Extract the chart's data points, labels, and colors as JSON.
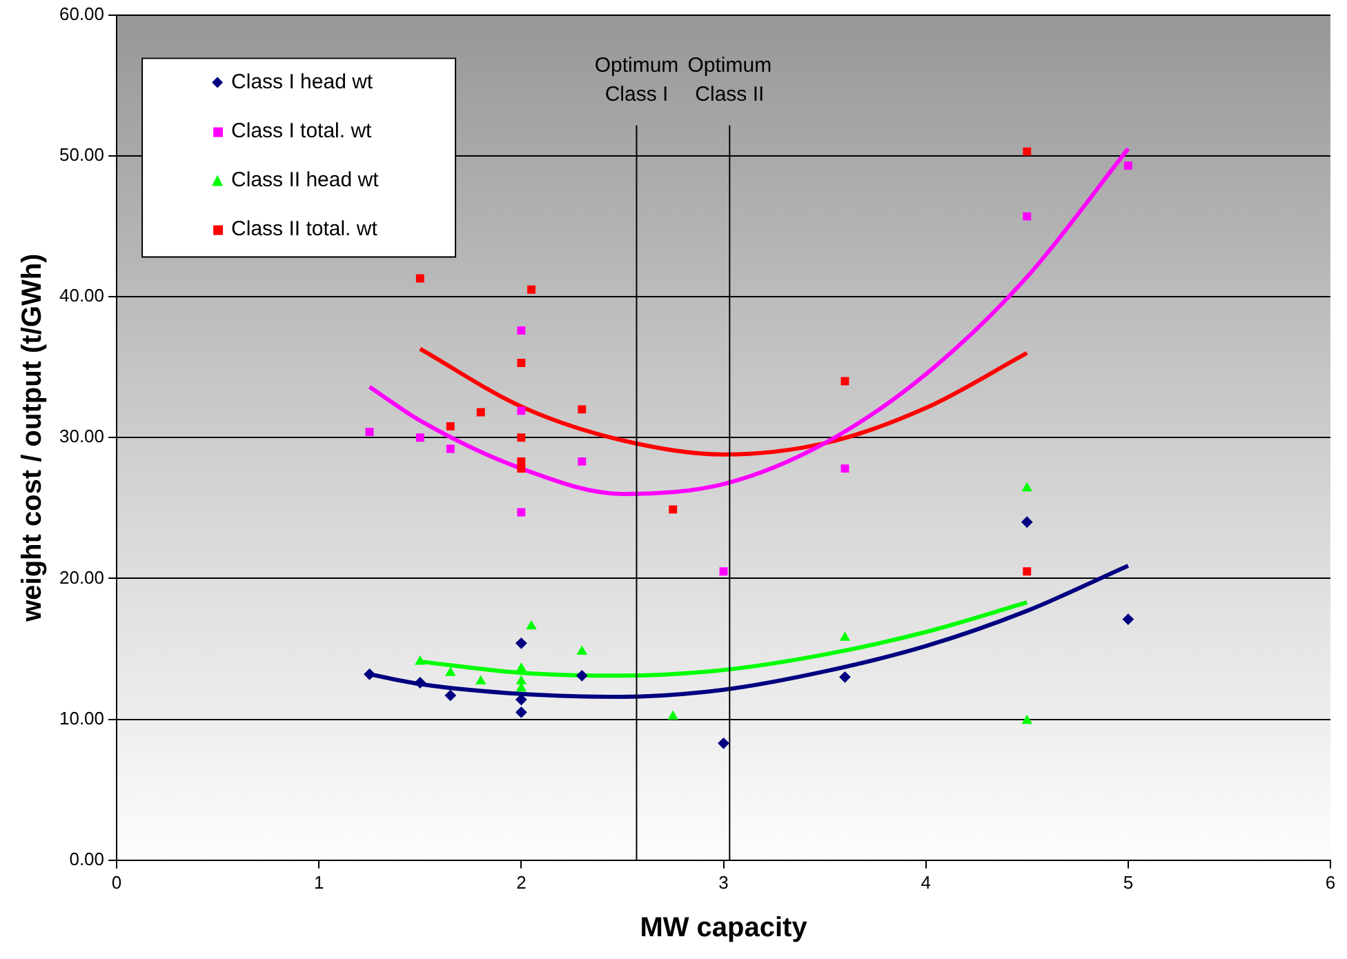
{
  "chart_data": {
    "type": "scatter",
    "xlabel": "MW capacity",
    "ylabel": "weight cost / output (t/GWh)",
    "xlim": [
      0,
      6
    ],
    "xticks": [
      0,
      1,
      2,
      3,
      4,
      5,
      6
    ],
    "ylim": [
      0,
      60
    ],
    "yticks": [
      {
        "value": 0,
        "label": "0.00"
      },
      {
        "value": 10,
        "label": "10.00"
      },
      {
        "value": 20,
        "label": "20.00"
      },
      {
        "value": 30,
        "label": "30.00"
      },
      {
        "value": 40,
        "label": "40.00"
      },
      {
        "value": 50,
        "label": "50.00"
      },
      {
        "value": 60,
        "label": "60.00"
      }
    ],
    "grid": "y",
    "legend": "top left",
    "series": [
      {
        "name": "Class I head wt",
        "marker": "diamond",
        "color": "#000080",
        "x": [
          1.25,
          1.5,
          1.65,
          2,
          2,
          2,
          2.3,
          3,
          3.6,
          4.5,
          5
        ],
        "values": [
          13.2,
          12.6,
          11.7,
          15.4,
          11.4,
          10.5,
          13.1,
          8.3,
          13.0,
          24.0,
          17.1
        ]
      },
      {
        "name": "Class I total. wt",
        "marker": "square",
        "color": "#ff00ff",
        "x": [
          1.25,
          1.5,
          1.65,
          2,
          2,
          2,
          2.3,
          3,
          3.6,
          4.5,
          5
        ],
        "values": [
          30.4,
          30.0,
          29.2,
          37.6,
          31.9,
          24.7,
          28.3,
          20.5,
          27.8,
          45.7,
          49.3
        ]
      },
      {
        "name": "Class II head wt",
        "marker": "triangle",
        "color": "#00ff00",
        "x": [
          1.5,
          1.65,
          1.8,
          2,
          2,
          2,
          2.05,
          2.3,
          2.75,
          3.6,
          4.5,
          4.5
        ],
        "values": [
          14.1,
          13.3,
          12.7,
          13.6,
          12.7,
          12.2,
          16.6,
          14.8,
          10.2,
          15.8,
          26.4,
          9.9
        ]
      },
      {
        "name": "Class II total. wt",
        "marker": "square",
        "color": "#ff0000",
        "x": [
          1.5,
          1.65,
          1.8,
          2,
          2,
          2,
          2,
          2.05,
          2.3,
          2.75,
          3.6,
          4.5,
          4.5
        ],
        "values": [
          41.3,
          30.8,
          31.8,
          35.3,
          30.0,
          28.3,
          27.8,
          40.5,
          32.0,
          24.9,
          34.0,
          50.3,
          20.5
        ]
      },
      {
        "type": "line",
        "marker": "none",
        "color": "#000080",
        "x": [
          1.25,
          1.5,
          2,
          2.5,
          3,
          3.5,
          4,
          4.5,
          5
        ],
        "values": [
          13.2,
          12.5,
          11.8,
          11.6,
          12.1,
          13.4,
          15.2,
          17.7,
          20.9
        ]
      },
      {
        "type": "line",
        "marker": "none",
        "color": "#ff00ff",
        "x": [
          1.25,
          1.5,
          2,
          2.5,
          3,
          3.5,
          4,
          4.5,
          5
        ],
        "values": [
          33.6,
          31.2,
          27.8,
          26.0,
          26.7,
          29.6,
          34.5,
          41.4,
          50.5
        ]
      },
      {
        "type": "line",
        "marker": "none",
        "color": "#00ff00",
        "x": [
          1.5,
          2,
          2.5,
          3,
          3.5,
          4,
          4.5
        ],
        "values": [
          14.1,
          13.3,
          13.1,
          13.5,
          14.6,
          16.2,
          18.3
        ]
      },
      {
        "type": "line",
        "marker": "none",
        "color": "#ff0000",
        "x": [
          1.5,
          2,
          2.5,
          3,
          3.5,
          4,
          4.5
        ],
        "values": [
          36.3,
          32.2,
          29.8,
          28.8,
          29.6,
          32.1,
          36.0
        ]
      }
    ],
    "ref_lines": [
      {
        "axis": "x",
        "value": 2.57,
        "label": "Optimum Class I",
        "color": "#000000"
      },
      {
        "axis": "x",
        "value": 3.03,
        "label": "Optimum Class II",
        "color": "#000000"
      }
    ]
  }
}
